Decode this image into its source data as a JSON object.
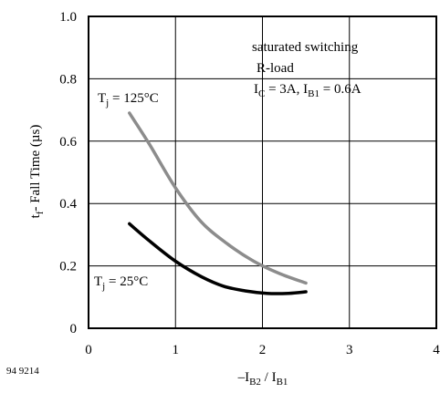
{
  "chart_data": {
    "type": "line",
    "title": "",
    "xlabel": {
      "prefix": "–I",
      "sub1": "B2",
      "middle": " / I",
      "sub2": "B1"
    },
    "ylabel": {
      "pre": "t",
      "sub": "f",
      "post": "- Fall Time  (µs)"
    },
    "xlim": [
      0,
      4
    ],
    "ylim": [
      0,
      1.0
    ],
    "x_ticks": [
      0,
      1,
      2,
      3,
      4
    ],
    "x_tick_labels": [
      "0",
      "1",
      "2",
      "3",
      "4"
    ],
    "y_ticks": [
      0,
      0.2,
      0.4,
      0.6,
      0.8,
      1.0
    ],
    "y_tick_labels": [
      "0",
      "0.2",
      "0.4",
      "0.6",
      "0.8",
      "1.0"
    ],
    "grid": true,
    "series": [
      {
        "label_pre": "T",
        "label_sub": "j",
        "label_post": " = 125°C",
        "color": "#8c8c8c",
        "x": [
          0.47,
          0.7,
          1.0,
          1.3,
          1.6,
          1.9,
          2.2,
          2.5
        ],
        "y": [
          0.69,
          0.59,
          0.45,
          0.34,
          0.27,
          0.215,
          0.175,
          0.145
        ]
      },
      {
        "label_pre": "T",
        "label_sub": "j",
        "label_post": " = 25°C",
        "color": "#000000",
        "x": [
          0.47,
          0.7,
          1.0,
          1.3,
          1.55,
          1.8,
          2.05,
          2.3,
          2.5
        ],
        "y": [
          0.335,
          0.28,
          0.215,
          0.165,
          0.135,
          0.12,
          0.112,
          0.112,
          0.117
        ]
      }
    ],
    "annotation": {
      "line1": "saturated switching",
      "line2": "R-load",
      "line3_a": "I",
      "line3_a_sub": "C",
      "line3_b": " = 3A, I",
      "line3_b_sub": "B1",
      "line3_c": " = 0.6A"
    }
  },
  "document_code": "94 9214"
}
